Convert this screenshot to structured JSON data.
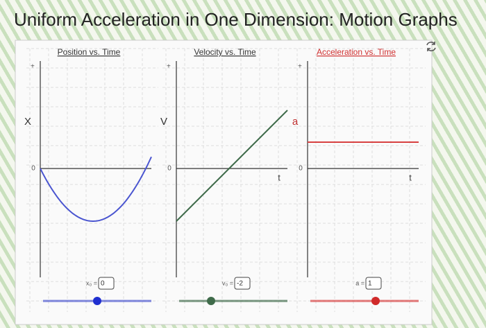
{
  "title": "Uniform Acceleration in One Dimension: Motion Graphs",
  "panels": [
    {
      "heading": "Position vs. Time",
      "y_label": "X",
      "plus": "+",
      "origin_label": "0",
      "param_label": "x₀ =",
      "param_value": 0,
      "color": "#4a55d0",
      "knob_color": "#1f2fd0"
    },
    {
      "heading": "Velocity vs. Time",
      "y_label": "V",
      "plus": "+",
      "origin_label": "0",
      "t_label": "t",
      "param_label": "v₀ =",
      "param_value": -2,
      "color": "#3f6b4a",
      "knob_color": "#3f6b4a"
    },
    {
      "heading": "Acceleration vs. Time",
      "y_label": "a",
      "plus": "+",
      "origin_label": "0",
      "t_label": "t",
      "param_label": "a =",
      "param_value": 1,
      "color": "#d84040",
      "knob_color": "#d02a2a"
    }
  ]
}
